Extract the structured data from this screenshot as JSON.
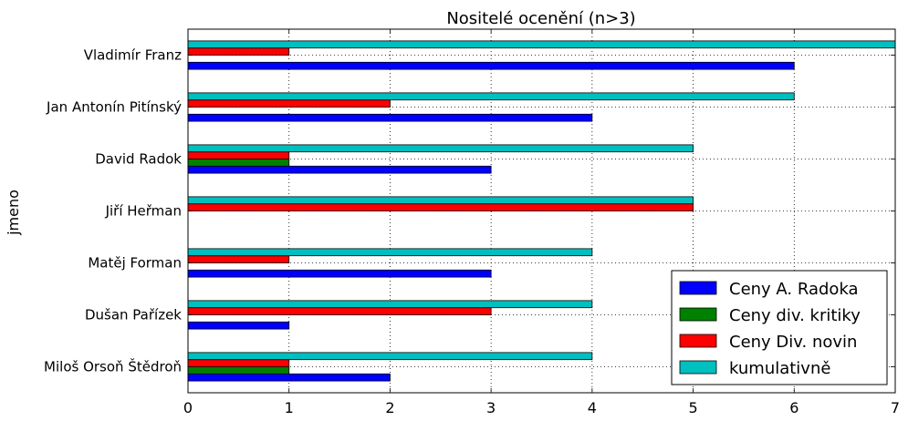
{
  "chart_data": {
    "type": "bar",
    "orientation": "horizontal",
    "title": "Nositelé ocenění (n>3)",
    "xlabel": "",
    "ylabel": "jmeno",
    "xlim": [
      0,
      7
    ],
    "xticks": [
      "0",
      "1",
      "2",
      "3",
      "4",
      "5",
      "6",
      "7"
    ],
    "grid": true,
    "legend_position": "lower-right",
    "categories": [
      "Vladimír Franz",
      "Jan Antonín Pitínský",
      "David Radok",
      "Jiří Heřman",
      "Matěj Forman",
      "Dušan Pařízek",
      "Miloš Orsoň Štědroň"
    ],
    "series": [
      {
        "name": "Ceny A. Radoka",
        "color": "#0000ff",
        "values": [
          6,
          4,
          3,
          0,
          3,
          1,
          2
        ]
      },
      {
        "name": "Ceny div. kritiky",
        "color": "#008000",
        "values": [
          0,
          0,
          1,
          0,
          0,
          0,
          1
        ]
      },
      {
        "name": "Ceny Div. novin",
        "color": "#ff0000",
        "values": [
          1,
          2,
          1,
          5,
          1,
          3,
          1
        ]
      },
      {
        "name": "kumulativně",
        "color": "#00bfbf",
        "values": [
          7,
          6,
          5,
          5,
          4,
          4,
          4
        ]
      }
    ]
  }
}
